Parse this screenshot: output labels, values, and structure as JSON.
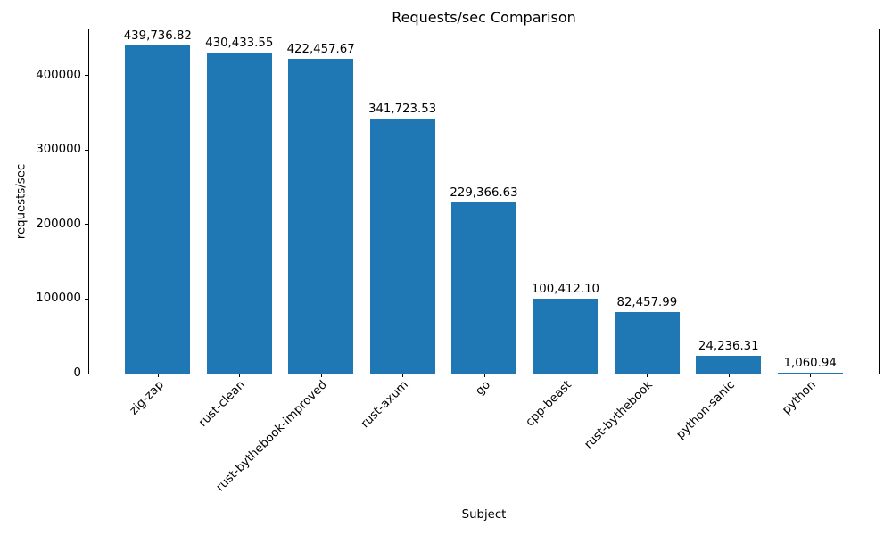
{
  "chart_data": {
    "type": "bar",
    "title": "Requests/sec Comparison",
    "xlabel": "Subject",
    "ylabel": "requests/sec",
    "categories": [
      "zig-zap",
      "rust-clean",
      "rust-bythebook-improved",
      "rust-axum",
      "go",
      "cpp-beast",
      "rust-bythebook",
      "python-sanic",
      "python"
    ],
    "values": [
      439736.82,
      430433.55,
      422457.67,
      341723.53,
      229366.63,
      100412.1,
      82457.99,
      24236.31,
      1060.94
    ],
    "value_labels": [
      "439,736.82",
      "430,433.55",
      "422,457.67",
      "341,723.53",
      "229,366.63",
      "100,412.10",
      "82,457.99",
      "24,236.31",
      "1,060.94"
    ],
    "yticks": [
      0,
      100000,
      200000,
      300000,
      400000
    ],
    "ytick_labels": [
      "0",
      "100000",
      "200000",
      "300000",
      "400000"
    ],
    "ylim": [
      0,
      461723.66
    ],
    "bar_color": "#1f77b4",
    "grid": "off",
    "legend": "none",
    "x_tick_rotation_deg": 45
  }
}
